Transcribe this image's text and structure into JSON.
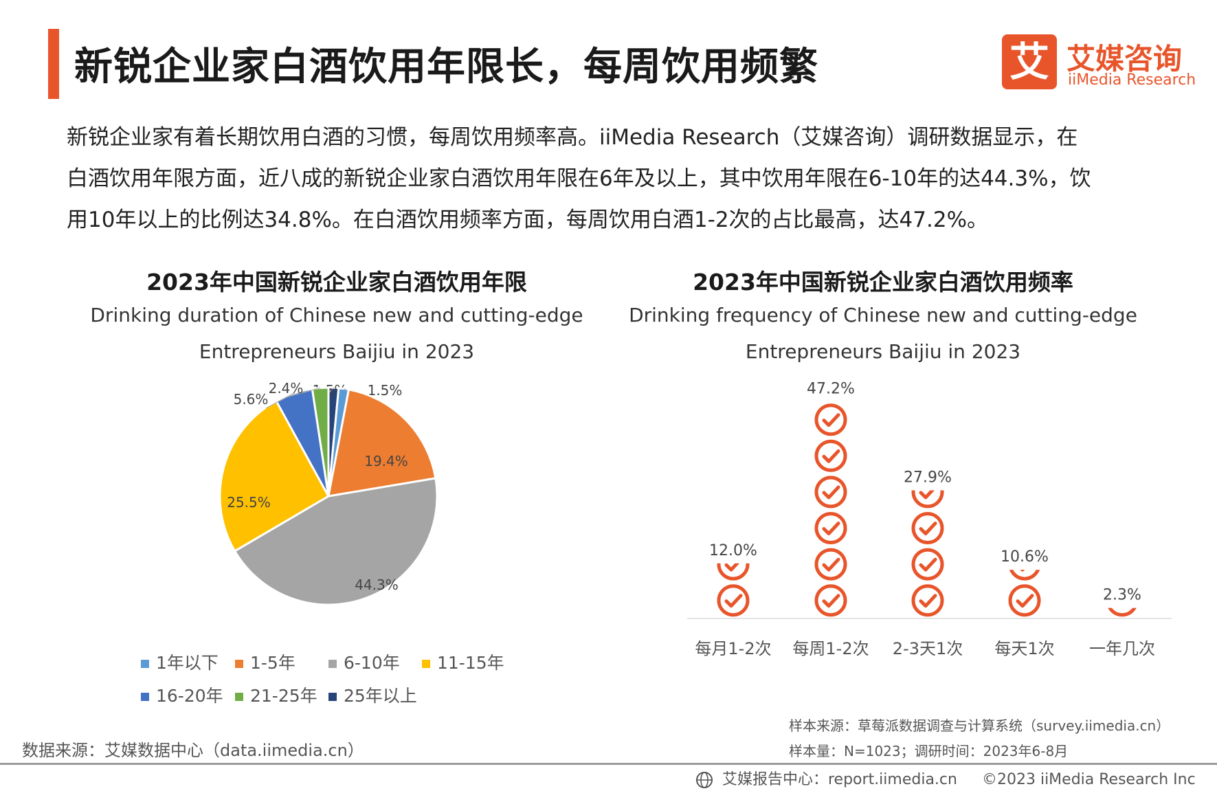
{
  "header": {
    "title": "新锐企业家白酒饮用年限长，每周饮用频繁",
    "logo_mark": "艾",
    "logo_cn": "艾媒咨询",
    "logo_en": "iiMedia Research",
    "accent_color": "#e8552b"
  },
  "intro": {
    "lines": [
      "新锐企业家有着长期饮用白酒的习惯，每周饮用频率高。iiMedia Research（艾媒咨询）调研数据显示，在",
      "白酒饮用年限方面，近八成的新锐企业家白酒饮用年限在6年及以上，其中饮用年限在6-10年的达44.3%，饮",
      "用10年以上的比例达34.8%。在白酒饮用频率方面，每周饮用白酒1-2次的占比最高，达47.2%。"
    ]
  },
  "chart_data": [
    {
      "type": "pie",
      "title": "2023年中国新锐企业家白酒饮用年限",
      "subtitle_lines": [
        "Drinking duration of Chinese new and cutting-edge",
        "Entrepreneurs Baijiu in 2023"
      ],
      "legend_position": "bottom",
      "slices": [
        {
          "label": "1年以下",
          "value": 1.5,
          "display": "1.5%",
          "color": "#5b9bd5"
        },
        {
          "label": "1-5年",
          "value": 19.4,
          "display": "19.4%",
          "color": "#ed7d31"
        },
        {
          "label": "6-10年",
          "value": 44.3,
          "display": "44.3%",
          "color": "#a5a5a5"
        },
        {
          "label": "11-15年",
          "value": 25.5,
          "display": "25.5%",
          "color": "#ffc000"
        },
        {
          "label": "16-20年",
          "value": 5.6,
          "display": "5.6%",
          "color": "#4472c4"
        },
        {
          "label": "21-25年",
          "value": 2.4,
          "display": "2.4%",
          "color": "#70ad47"
        },
        {
          "label": "25年以上",
          "value": 1.5,
          "display": "1.5%",
          "color": "#264478"
        }
      ]
    },
    {
      "type": "bar",
      "title": "2023年中国新锐企业家白酒饮用频率",
      "subtitle_lines": [
        "Drinking frequency of Chinese new and cutting-edge",
        "Entrepreneurs Baijiu in 2023"
      ],
      "categories": [
        "每月1-2次",
        "每周1-2次",
        "2-3天1次",
        "每天1次",
        "一年几次"
      ],
      "values": [
        12.0,
        47.2,
        27.9,
        10.6,
        2.3
      ],
      "value_labels": [
        "12.0%",
        "47.2%",
        "27.9%",
        "10.6%",
        "2.3%"
      ],
      "ylim": [
        0,
        50
      ],
      "marker": "check-circle-icon",
      "color": "#e8552b"
    }
  ],
  "sources": {
    "left": "数据来源：艾媒数据中心（data.iimedia.cn）",
    "sample_source": "样本来源：草莓派数据调查与计算系统（survey.iimedia.cn）",
    "sample_size": "样本量：N=1023；调研时间：2023年6-8月"
  },
  "footer": {
    "report_center": "艾媒报告中心：report.iimedia.cn",
    "copyright": "©2023  iiMedia Research  Inc"
  }
}
